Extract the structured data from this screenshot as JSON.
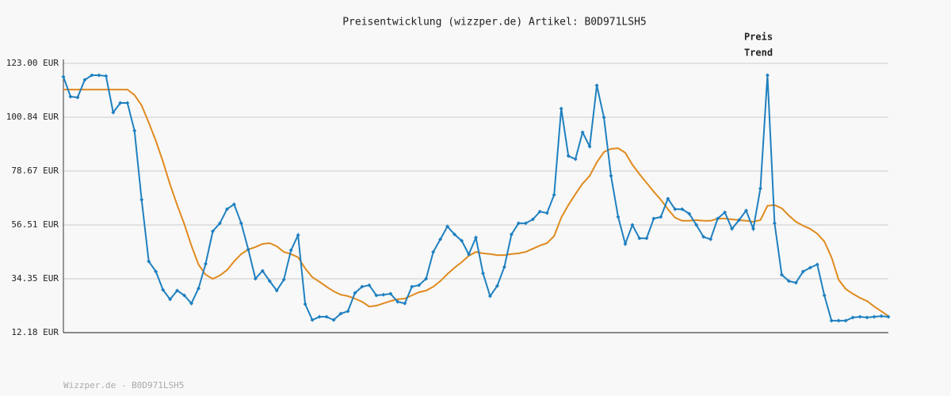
{
  "chart_data": {
    "type": "line",
    "title": "Preisentwicklung (wizzper.de) Artikel: B0D971LSH5",
    "footer": "Wizzper.de - B0D971LSH5",
    "ylim": [
      12.18,
      123.0
    ],
    "yticks": [
      {
        "value": 12.18,
        "label": "12.18 EUR"
      },
      {
        "value": 34.35,
        "label": "34.35 EUR"
      },
      {
        "value": 56.51,
        "label": "56.51 EUR"
      },
      {
        "value": 78.67,
        "label": "78.67 EUR"
      },
      {
        "value": 100.84,
        "label": "100.84 EUR"
      },
      {
        "value": 123.0,
        "label": "123.00 EUR"
      }
    ],
    "grid": true,
    "legend": "top-right",
    "series": [
      {
        "name": "Preis",
        "color": "#1f80c0",
        "markers": true,
        "values": [
          117.5,
          109.3,
          109.0,
          116.2,
          118.1,
          118.1,
          117.8,
          102.8,
          106.7,
          106.7,
          95.3,
          66.9,
          41.5,
          37.3,
          29.8,
          25.9,
          29.5,
          27.5,
          24.2,
          30.4,
          40.5,
          53.9,
          57.2,
          63.0,
          65.0,
          57.2,
          46.4,
          34.4,
          37.6,
          33.4,
          29.5,
          34.0,
          46.1,
          52.3,
          23.9,
          17.4,
          18.7,
          18.7,
          17.4,
          20.0,
          21.0,
          28.5,
          31.1,
          31.7,
          27.5,
          27.8,
          28.2,
          24.9,
          24.2,
          31.1,
          31.7,
          34.4,
          45.4,
          50.6,
          55.9,
          52.6,
          50.0,
          44.4,
          51.3,
          36.6,
          27.2,
          31.4,
          39.2,
          52.6,
          57.2,
          57.2,
          58.8,
          62.0,
          61.4,
          68.9,
          104.4,
          84.9,
          83.6,
          94.6,
          88.8,
          113.9,
          100.8,
          76.7,
          59.8,
          48.7,
          56.5,
          51.0,
          51.0,
          59.1,
          59.8,
          67.3,
          63.0,
          63.0,
          61.1,
          56.5,
          51.6,
          50.6,
          59.1,
          61.7,
          54.9,
          58.5,
          62.4,
          54.9,
          71.5,
          118.1,
          57.2,
          36.0,
          33.4,
          32.7,
          37.3,
          38.9,
          40.2,
          27.5,
          17.1,
          17.1,
          17.1,
          18.4,
          18.7,
          18.4,
          18.7,
          19.0,
          18.7
        ]
      },
      {
        "name": "Trend",
        "color": "#e08a1e",
        "markers": false,
        "values": [
          112.2,
          112.2,
          112.2,
          112.2,
          112.2,
          112.2,
          112.2,
          112.2,
          112.2,
          112.2,
          110.0,
          105.7,
          98.6,
          91.1,
          82.6,
          73.1,
          64.7,
          56.8,
          48.0,
          40.2,
          36.0,
          34.3,
          35.7,
          37.9,
          41.5,
          44.5,
          46.4,
          47.4,
          48.7,
          49.0,
          47.7,
          45.4,
          44.5,
          43.2,
          38.6,
          35.0,
          33.1,
          31.1,
          29.2,
          27.8,
          27.2,
          26.2,
          24.9,
          22.9,
          23.3,
          24.2,
          25.2,
          25.9,
          26.2,
          27.5,
          28.8,
          29.5,
          31.1,
          33.4,
          36.3,
          38.9,
          41.2,
          43.8,
          45.4,
          44.8,
          44.5,
          44.1,
          44.1,
          44.5,
          44.8,
          45.4,
          46.7,
          48.0,
          49.0,
          51.9,
          59.5,
          64.7,
          69.2,
          73.5,
          76.7,
          82.3,
          86.5,
          87.8,
          88.1,
          86.2,
          81.3,
          77.4,
          73.8,
          70.2,
          66.9,
          63.0,
          59.5,
          58.2,
          58.2,
          58.5,
          58.2,
          58.2,
          59.1,
          59.1,
          58.8,
          58.5,
          58.2,
          57.8,
          58.5,
          64.4,
          64.7,
          63.4,
          60.4,
          57.8,
          56.2,
          54.9,
          52.9,
          49.7,
          43.2,
          34.0,
          30.1,
          28.2,
          26.5,
          25.2,
          22.9,
          21.0,
          19.0
        ]
      }
    ]
  }
}
